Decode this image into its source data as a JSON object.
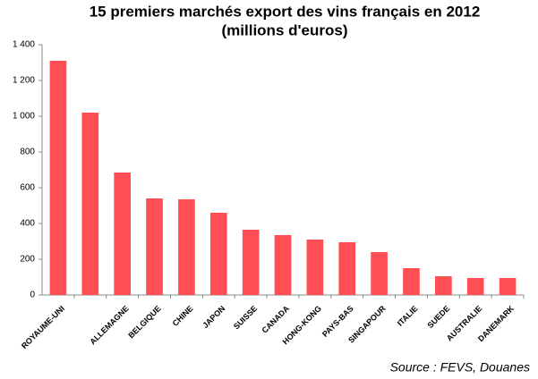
{
  "chart_data": {
    "type": "bar",
    "title": "15 premiers marchés export des vins français en 2012",
    "subtitle": "(millions d'euros)",
    "annotation": "Source : FEVS, Douanes",
    "categories": [
      "ROYAUME-UNI",
      null,
      "ALLEMAGNE",
      "BELGIQUE",
      "CHINE",
      "JAPON",
      "SUISSE",
      "CANADA",
      "HONG-KONG",
      "PAYS-BAS",
      "SINGAPOUR",
      "ITALIE",
      "SUEDE",
      "AUSTRALIE",
      "DANEMARK"
    ],
    "values": [
      1310,
      1020,
      685,
      540,
      535,
      460,
      365,
      335,
      310,
      295,
      240,
      150,
      105,
      95,
      95
    ],
    "color": "#ff4f55",
    "ylim": [
      0,
      1400
    ],
    "yticks": [
      0,
      200,
      400,
      600,
      800,
      {
        "value": 1000,
        "label": "1 000"
      },
      {
        "value": 1200,
        "label": "1 200"
      },
      {
        "value": 1400,
        "label": "1 400"
      }
    ],
    "grid": false
  }
}
